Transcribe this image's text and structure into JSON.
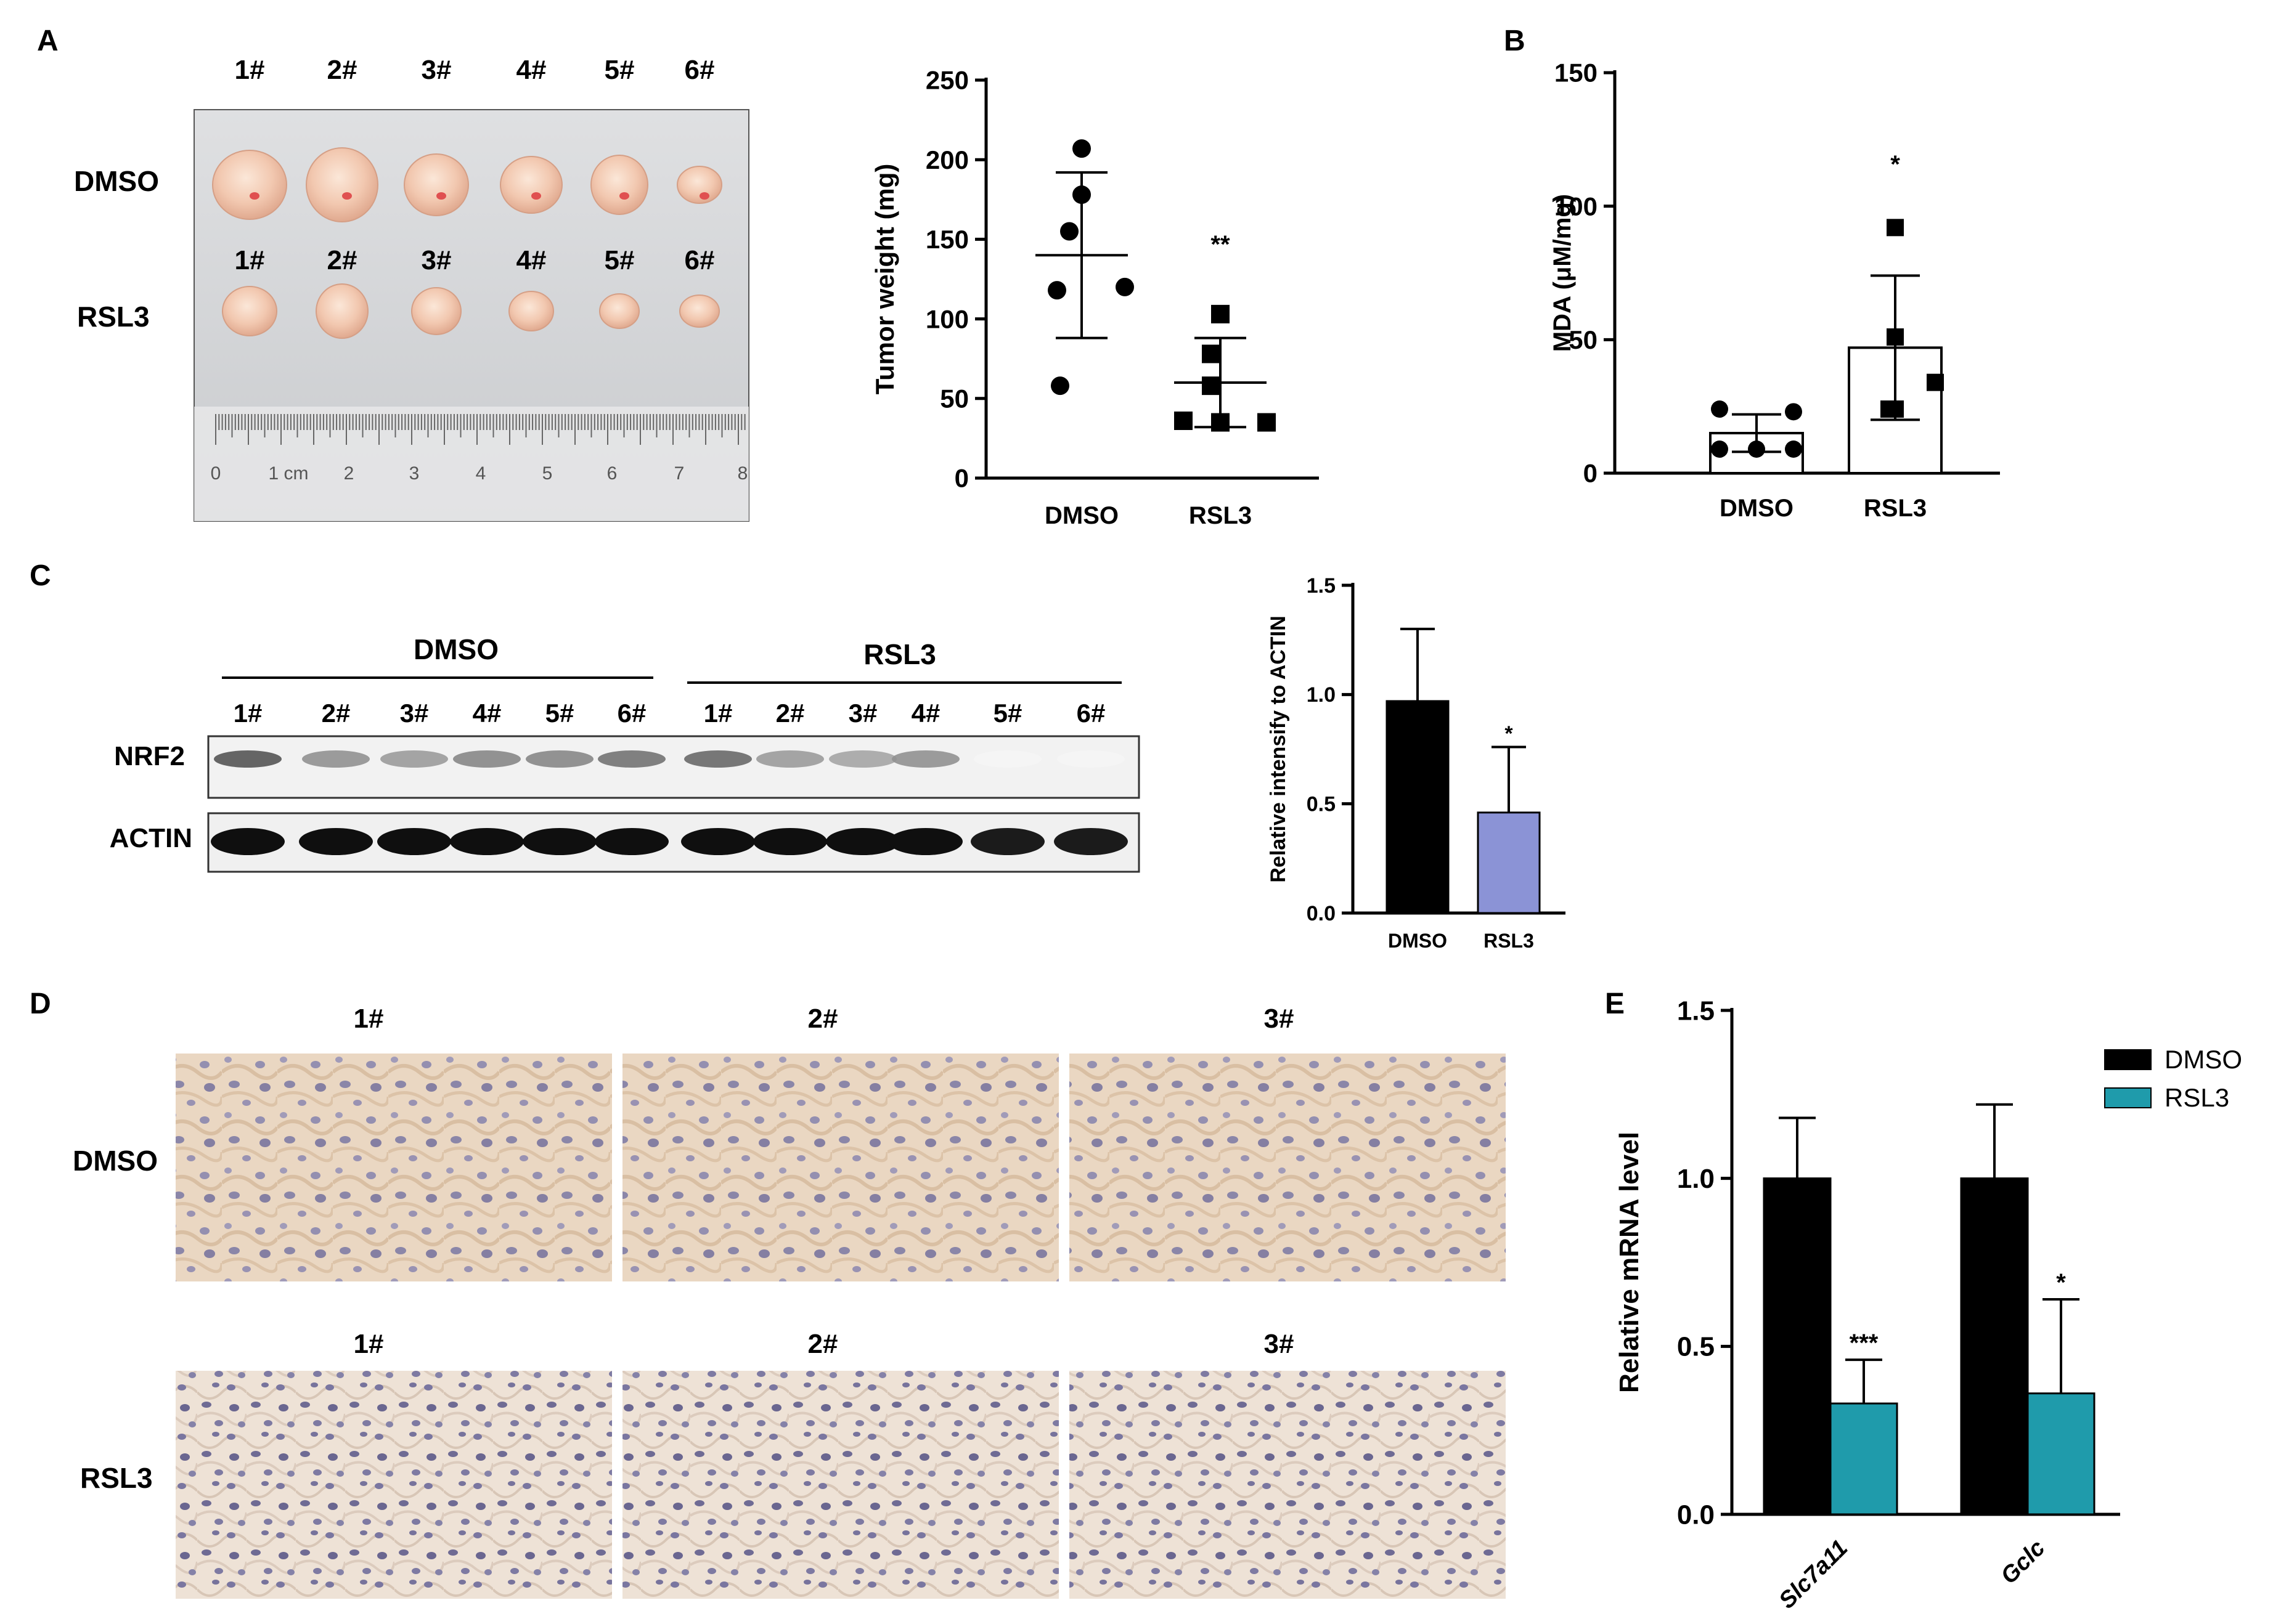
{
  "panels": {
    "A": {
      "letter": "A",
      "photo": {
        "top_labels": [
          "1#",
          "2#",
          "3#",
          "4#",
          "5#",
          "6#"
        ],
        "mid_labels": [
          "1#",
          "2#",
          "3#",
          "4#",
          "5#",
          "6#"
        ],
        "row_labels": [
          "DMSO",
          "RSL3"
        ],
        "ruler_numbers": [
          "0",
          "1 cm",
          "2",
          "3",
          "4",
          "5",
          "6",
          "7",
          "8"
        ]
      }
    },
    "B": {
      "letter": "B"
    },
    "C": {
      "letter": "C",
      "blot": {
        "group_labels": [
          "DMSO",
          "RSL3"
        ],
        "lane_labels": [
          "1#",
          "2#",
          "3#",
          "4#",
          "5#",
          "6#",
          "1#",
          "2#",
          "3#",
          "4#",
          "5#",
          "6#"
        ],
        "band_labels": [
          "NRF2",
          "ACTIN"
        ],
        "nrf2_intensity": [
          0.85,
          0.55,
          0.5,
          0.6,
          0.6,
          0.7,
          0.75,
          0.5,
          0.45,
          0.55,
          0.05,
          0.05
        ],
        "actin_intensity": [
          1,
          1,
          1,
          1,
          1,
          1,
          1,
          1,
          1,
          1,
          0.95,
          0.95
        ]
      }
    },
    "D": {
      "letter": "D",
      "col_labels_top": [
        "1#",
        "2#",
        "3#"
      ],
      "col_labels_bottom": [
        "1#",
        "2#",
        "3#"
      ],
      "row_labels": [
        "DMSO",
        "RSL3"
      ]
    },
    "E": {
      "letter": "E"
    }
  },
  "chart_data": [
    {
      "id": "A_tumor_weight",
      "type": "scatter",
      "categories": [
        "DMSO",
        "RSL3"
      ],
      "ylabel": "Tumor weight (mg)",
      "ylim": [
        0,
        250
      ],
      "yticks": [
        "0",
        "50",
        "100",
        "150",
        "200",
        "250"
      ],
      "series": [
        {
          "category": "DMSO",
          "marker": "circle",
          "points": [
            207,
            178,
            155,
            120,
            118,
            58
          ],
          "mean": 140,
          "sd": 52
        },
        {
          "category": "RSL3",
          "marker": "square",
          "points": [
            103,
            78,
            58,
            36,
            35,
            35
          ],
          "mean": 60,
          "sd": 28
        }
      ],
      "annotations": [
        {
          "category": "RSL3",
          "text": "**"
        }
      ]
    },
    {
      "id": "B_MDA",
      "type": "bar",
      "categories": [
        "DMSO",
        "RSL3"
      ],
      "ylabel": "MDA (μM/mg)",
      "ylim": [
        0,
        150
      ],
      "yticks": [
        "0",
        "50",
        "100",
        "150"
      ],
      "values": [
        15,
        47
      ],
      "errors": [
        7,
        27
      ],
      "points": [
        [
          24,
          23,
          9,
          9,
          9
        ],
        [
          92,
          51,
          34,
          24,
          24
        ]
      ],
      "markers": [
        "circle",
        "square"
      ],
      "bar_colors": [
        "#ffffff",
        "#ffffff"
      ],
      "annotations": [
        {
          "category": "RSL3",
          "text": "*"
        }
      ]
    },
    {
      "id": "C_NRF2",
      "type": "bar",
      "categories": [
        "DMSO",
        "RSL3"
      ],
      "ylabel": "Relative intensify to ACTIN",
      "ylim": [
        0,
        1.5
      ],
      "yticks": [
        "0.0",
        "0.5",
        "1.0",
        "1.5"
      ],
      "values": [
        0.97,
        0.46
      ],
      "errors": [
        0.33,
        0.3
      ],
      "bar_colors": [
        "#000000",
        "#8b93d6"
      ],
      "annotations": [
        {
          "category": "RSL3",
          "text": "*"
        }
      ]
    },
    {
      "id": "E_mRNA",
      "type": "bar",
      "categories": [
        "Slc7a11",
        "Gclc"
      ],
      "ylabel": "Relative mRNA level",
      "ylim": [
        0,
        1.5
      ],
      "yticks": [
        "0.0",
        "0.5",
        "1.0",
        "1.5"
      ],
      "legend": "top-right",
      "series": [
        {
          "name": "DMSO",
          "color": "#000000",
          "values": [
            1.0,
            1.0
          ],
          "errors": [
            0.18,
            0.22
          ]
        },
        {
          "name": "RSL3",
          "color": "#1f9bab",
          "values": [
            0.33,
            0.36
          ],
          "errors": [
            0.13,
            0.28
          ]
        }
      ],
      "annotations": [
        {
          "category": "Slc7a11",
          "series": "RSL3",
          "text": "***"
        },
        {
          "category": "Gclc",
          "series": "RSL3",
          "text": "*"
        }
      ]
    }
  ]
}
